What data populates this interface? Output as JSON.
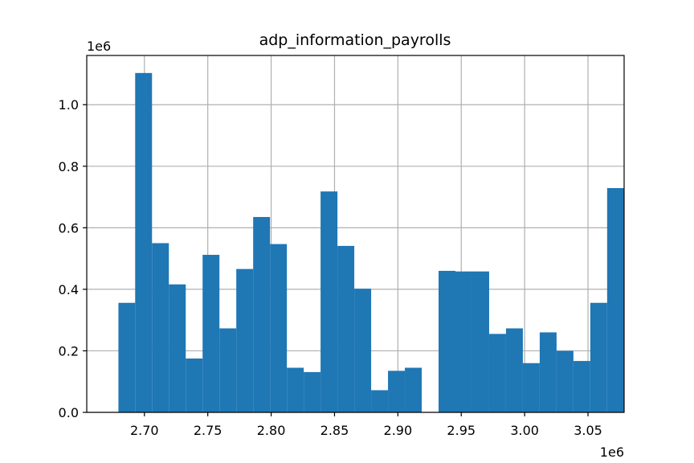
{
  "chart_data": {
    "type": "bar",
    "title": "adp_information_payrolls",
    "xlabel": "",
    "ylabel": "",
    "x_offset_label": "1e6",
    "y_offset_label": "1e6",
    "x_scale": 1000000,
    "y_scale": 1000000,
    "xlim": [
      2.6545,
      3.0785
    ],
    "ylim": [
      0,
      1.16
    ],
    "grid": true,
    "bar_color": "#1f77b4",
    "x_ticks": [
      2.7,
      2.75,
      2.8,
      2.85,
      2.9,
      2.95,
      3.0,
      3.05
    ],
    "x_tick_labels": [
      "2.70",
      "2.75",
      "2.80",
      "2.85",
      "2.90",
      "2.95",
      "3.00",
      "3.05"
    ],
    "y_ticks": [
      0.0,
      0.2,
      0.4,
      0.6,
      0.8,
      1.0
    ],
    "y_tick_labels": [
      "0.0",
      "0.2",
      "0.4",
      "0.6",
      "0.8",
      "1.0"
    ],
    "bins": [
      {
        "start": 2.6795,
        "end": 2.6927,
        "value": 0.356
      },
      {
        "start": 2.6927,
        "end": 2.706,
        "value": 1.103
      },
      {
        "start": 2.706,
        "end": 2.7193,
        "value": 0.55
      },
      {
        "start": 2.7193,
        "end": 2.7326,
        "value": 0.416
      },
      {
        "start": 2.7326,
        "end": 2.7459,
        "value": 0.175
      },
      {
        "start": 2.7459,
        "end": 2.7592,
        "value": 0.512
      },
      {
        "start": 2.7592,
        "end": 2.7725,
        "value": 0.273
      },
      {
        "start": 2.7725,
        "end": 2.7858,
        "value": 0.466
      },
      {
        "start": 2.7858,
        "end": 2.7991,
        "value": 0.635
      },
      {
        "start": 2.7991,
        "end": 2.8124,
        "value": 0.547
      },
      {
        "start": 2.8124,
        "end": 2.8257,
        "value": 0.145
      },
      {
        "start": 2.8257,
        "end": 2.839,
        "value": 0.131
      },
      {
        "start": 2.839,
        "end": 2.8523,
        "value": 0.718
      },
      {
        "start": 2.8523,
        "end": 2.8656,
        "value": 0.541
      },
      {
        "start": 2.8656,
        "end": 2.8789,
        "value": 0.402
      },
      {
        "start": 2.8789,
        "end": 2.8922,
        "value": 0.072
      },
      {
        "start": 2.8922,
        "end": 2.9055,
        "value": 0.135
      },
      {
        "start": 2.9055,
        "end": 2.9188,
        "value": 0.145
      },
      {
        "start": 2.9188,
        "end": 2.9321,
        "value": 0.0
      },
      {
        "start": 2.9321,
        "end": 2.9454,
        "value": 0.46
      },
      {
        "start": 2.9454,
        "end": 2.9587,
        "value": 0.458
      },
      {
        "start": 2.9587,
        "end": 2.972,
        "value": 0.458
      },
      {
        "start": 2.972,
        "end": 2.9853,
        "value": 0.255
      },
      {
        "start": 2.9853,
        "end": 2.9986,
        "value": 0.273
      },
      {
        "start": 2.9986,
        "end": 3.0119,
        "value": 0.16
      },
      {
        "start": 3.0119,
        "end": 3.0252,
        "value": 0.26
      },
      {
        "start": 3.0252,
        "end": 3.0385,
        "value": 0.2
      },
      {
        "start": 3.0385,
        "end": 3.0518,
        "value": 0.167
      },
      {
        "start": 3.0518,
        "end": 3.0651,
        "value": 0.356
      },
      {
        "start": 3.0651,
        "end": 3.0784,
        "value": 0.729
      }
    ]
  }
}
